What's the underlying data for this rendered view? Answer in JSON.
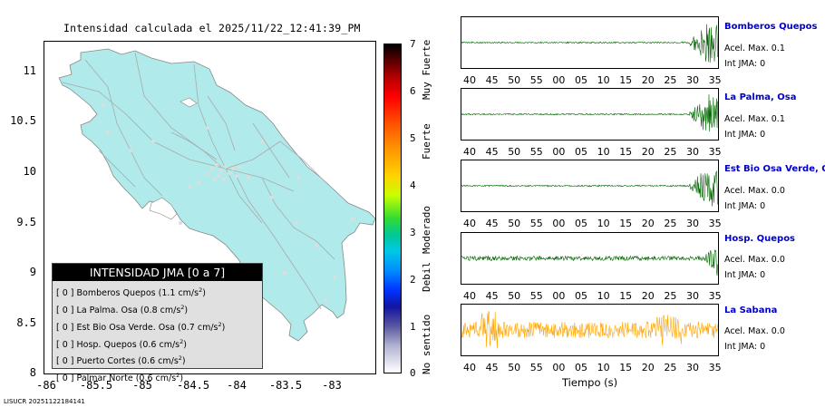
{
  "map": {
    "title": "Intensidad calculada el 2025/11/22_12:41:39_PM",
    "lat_ticks": [
      "11",
      "10.5",
      "10",
      "9.5",
      "9",
      "8.5",
      "8"
    ],
    "lon_ticks": [
      "-86",
      "-85.5",
      "-85",
      "-84.5",
      "-84",
      "-83.5",
      "-83"
    ],
    "land_color": "#b0eaea",
    "road_color": "#aaaaaa"
  },
  "legend": {
    "title": "INTENSIDAD JMA [0 a 7]",
    "items": [
      {
        "jma": "[ 0 ]",
        "name": "Bomberos Quepos (1.1 cm/s",
        "sup": "2",
        "close": ")"
      },
      {
        "jma": "[ 0 ]",
        "name": "La Palma. Osa (0.8 cm/s",
        "sup": "2",
        "close": ")"
      },
      {
        "jma": "[ 0 ]",
        "name": "Est Bio Osa Verde. Osa (0.7 cm/s",
        "sup": "2",
        "close": ")"
      },
      {
        "jma": "[ 0 ]",
        "name": "Hosp. Quepos (0.6 cm/s",
        "sup": "2",
        "close": ")"
      },
      {
        "jma": "[ 0 ]",
        "name": "Puerto Cortes (0.6 cm/s",
        "sup": "2",
        "close": ")"
      },
      {
        "jma": "[ 0 ]",
        "name": "Palmar Norte (0.6 cm/s",
        "sup": "2",
        "close": ")"
      }
    ]
  },
  "scale": {
    "ticks": [
      "7",
      "6",
      "5",
      "4",
      "3",
      "2",
      "1",
      "0"
    ],
    "labels": [
      "Muy Fuerte",
      "Fuerte",
      "Moderado",
      "Debil",
      "No sentido"
    ]
  },
  "panels": {
    "time_ticks": [
      "40",
      "45",
      "50",
      "55",
      "00",
      "05",
      "10",
      "15",
      "20",
      "25",
      "30",
      "35"
    ],
    "xlabel": "Tiempo (s)",
    "stations": [
      {
        "name": "Bomberos Quepos",
        "acel": "Acel. Max. 0.1",
        "jma": "Int JMA: 0",
        "color": "#006400"
      },
      {
        "name": "La Palma, Osa",
        "acel": "Acel. Max. 0.1",
        "jma": "Int JMA: 0",
        "color": "#006400"
      },
      {
        "name": "Est Bio Osa Verde, Osa",
        "acel": "Acel. Max. 0.0",
        "jma": "Int JMA: 0",
        "color": "#006400"
      },
      {
        "name": "Hosp. Quepos",
        "acel": "Acel. Max. 0.0",
        "jma": "Int JMA: 0",
        "color": "#006400"
      },
      {
        "name": "La Sabana",
        "acel": "Acel. Max. 0.0",
        "jma": "Int JMA: 0",
        "color": "#ffa500"
      }
    ]
  },
  "footer": "LISUCR 20251122184141"
}
